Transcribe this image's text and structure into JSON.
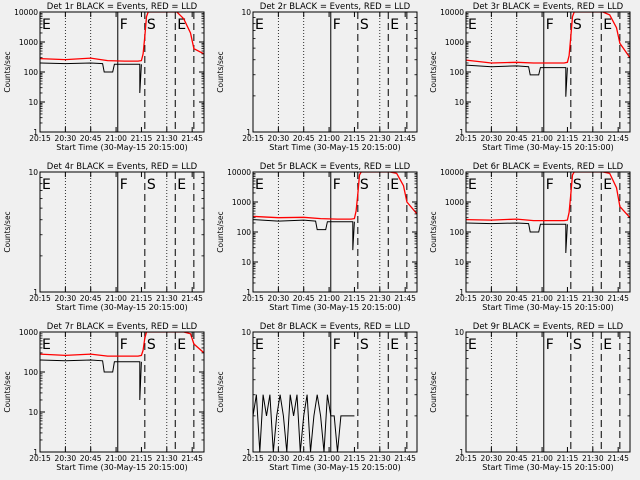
{
  "chart_data": [
    {
      "type": "line",
      "title": "Det 1r BLACK = Events, RED = LLD",
      "xlabel": "Start Time (30-May-15 20:15:00)",
      "ylabel": "Counts/sec",
      "ylim": [
        1,
        10000
      ],
      "yscale": "log",
      "yticks": [
        "1",
        "10",
        "100",
        "1000",
        "10000"
      ],
      "xlim": [
        "20:15",
        "21:52"
      ],
      "xticks": [
        "20:15",
        "20:30",
        "20:45",
        "21:00",
        "21:15",
        "21:30",
        "21:45"
      ],
      "markers": [
        {
          "label": "E",
          "time": "20:15",
          "style": "solid"
        },
        {
          "label": "F",
          "time": "21:01",
          "style": "solid"
        },
        {
          "label": "S",
          "time": "21:17",
          "style": "dashed"
        },
        {
          "label": "E",
          "time": "21:35",
          "style": "dashed"
        },
        {
          "label": "",
          "time": "21:46",
          "style": "dashed"
        }
      ],
      "series": [
        {
          "color": "#000000",
          "x": [
            "20:15",
            "20:30",
            "20:45",
            "20:52",
            "20:53",
            "20:58",
            "20:59",
            "21:05",
            "21:10",
            "21:14",
            "21:14",
            "21:15"
          ],
          "y": [
            200,
            190,
            200,
            190,
            100,
            100,
            180,
            180,
            180,
            180,
            20,
            180
          ]
        },
        {
          "color": "#ff0000",
          "x": [
            "20:15",
            "20:30",
            "20:45",
            "20:55",
            "21:05",
            "21:13",
            "21:15",
            "21:16",
            "21:17",
            "21:18",
            "21:19",
            "21:20",
            "21:32",
            "21:36",
            "21:40",
            "21:44",
            "21:46",
            "21:52"
          ],
          "y": [
            280,
            260,
            290,
            240,
            230,
            230,
            240,
            400,
            1500,
            7000,
            12000,
            12000,
            12000,
            12000,
            6000,
            2000,
            600,
            400
          ]
        }
      ]
    },
    {
      "type": "line",
      "title": "Det 2r BLACK = Events, RED = LLD",
      "xlabel": "Start Time (30-May-15 20:15:00)",
      "ylabel": "Counts/sec",
      "ylim": [
        1,
        10
      ],
      "yscale": "log",
      "yticks": [
        "1",
        "10"
      ],
      "xlim": [
        "20:15",
        "21:52"
      ],
      "xticks": [
        "20:15",
        "20:30",
        "20:45",
        "21:00",
        "21:15",
        "21:30",
        "21:45"
      ],
      "markers": [
        {
          "label": "E",
          "time": "20:15",
          "style": "solid"
        },
        {
          "label": "F",
          "time": "21:01",
          "style": "solid"
        },
        {
          "label": "S",
          "time": "21:17",
          "style": "dashed"
        },
        {
          "label": "E",
          "time": "21:35",
          "style": "dashed"
        },
        {
          "label": "",
          "time": "21:46",
          "style": "dashed"
        }
      ],
      "series": []
    },
    {
      "type": "line",
      "title": "Det 3r BLACK = Events, RED = LLD",
      "xlabel": "Start Time (30-May-15 20:15:00)",
      "ylabel": "Counts/sec",
      "ylim": [
        1,
        10000
      ],
      "yscale": "log",
      "yticks": [
        "1",
        "10",
        "100",
        "1000",
        "10000"
      ],
      "xlim": [
        "20:15",
        "21:52"
      ],
      "xticks": [
        "20:15",
        "20:30",
        "20:45",
        "21:00",
        "21:15",
        "21:30",
        "21:45"
      ],
      "markers": [
        {
          "label": "E",
          "time": "20:15",
          "style": "solid"
        },
        {
          "label": "F",
          "time": "21:01",
          "style": "solid"
        },
        {
          "label": "S",
          "time": "21:17",
          "style": "dashed"
        },
        {
          "label": "E",
          "time": "21:35",
          "style": "dashed"
        },
        {
          "label": "",
          "time": "21:46",
          "style": "dashed"
        }
      ],
      "series": [
        {
          "color": "#000000",
          "x": [
            "20:15",
            "20:30",
            "20:45",
            "20:52",
            "20:53",
            "20:58",
            "20:59",
            "21:05",
            "21:10",
            "21:14",
            "21:14",
            "21:15"
          ],
          "y": [
            170,
            150,
            160,
            150,
            80,
            80,
            140,
            140,
            140,
            140,
            15,
            140
          ]
        },
        {
          "color": "#ff0000",
          "x": [
            "20:15",
            "20:30",
            "20:45",
            "20:55",
            "21:05",
            "21:13",
            "21:15",
            "21:16",
            "21:17",
            "21:18",
            "21:19",
            "21:20",
            "21:32",
            "21:36",
            "21:40",
            "21:44",
            "21:46",
            "21:52"
          ],
          "y": [
            250,
            200,
            210,
            200,
            200,
            200,
            210,
            350,
            1500,
            7000,
            12000,
            12000,
            12000,
            12000,
            8000,
            3000,
            900,
            300
          ]
        }
      ]
    },
    {
      "type": "line",
      "title": "Det 4r BLACK = Events, RED = LLD",
      "xlabel": "Start Time (30-May-15 20:15:00)",
      "ylabel": "Counts/sec",
      "ylim": [
        1,
        10
      ],
      "yscale": "log",
      "yticks": [
        "1",
        "10"
      ],
      "xlim": [
        "20:15",
        "21:52"
      ],
      "xticks": [
        "20:15",
        "20:30",
        "20:45",
        "21:00",
        "21:15",
        "21:30",
        "21:45"
      ],
      "markers": [
        {
          "label": "E",
          "time": "20:15",
          "style": "solid"
        },
        {
          "label": "F",
          "time": "21:01",
          "style": "solid"
        },
        {
          "label": "S",
          "time": "21:17",
          "style": "dashed"
        },
        {
          "label": "E",
          "time": "21:35",
          "style": "dashed"
        },
        {
          "label": "",
          "time": "21:46",
          "style": "dashed"
        }
      ],
      "series": []
    },
    {
      "type": "line",
      "title": "Det 5r BLACK = Events, RED = LLD",
      "xlabel": "Start Time (30-May-15 20:15:00)",
      "ylabel": "Counts/sec",
      "ylim": [
        1,
        10000
      ],
      "yscale": "log",
      "yticks": [
        "1",
        "10",
        "100",
        "1000",
        "10000"
      ],
      "xlim": [
        "20:15",
        "21:52"
      ],
      "xticks": [
        "20:15",
        "20:30",
        "20:45",
        "21:00",
        "21:15",
        "21:30",
        "21:45"
      ],
      "markers": [
        {
          "label": "E",
          "time": "20:15",
          "style": "solid"
        },
        {
          "label": "F",
          "time": "21:01",
          "style": "solid"
        },
        {
          "label": "S",
          "time": "21:17",
          "style": "dashed"
        },
        {
          "label": "E",
          "time": "21:35",
          "style": "dashed"
        },
        {
          "label": "",
          "time": "21:46",
          "style": "dashed"
        }
      ],
      "series": [
        {
          "color": "#000000",
          "x": [
            "20:15",
            "20:30",
            "20:45",
            "20:52",
            "20:53",
            "20:58",
            "20:59",
            "21:05",
            "21:10",
            "21:14",
            "21:14",
            "21:15"
          ],
          "y": [
            260,
            230,
            250,
            230,
            120,
            120,
            220,
            220,
            220,
            220,
            25,
            220
          ]
        },
        {
          "color": "#ff0000",
          "x": [
            "20:15",
            "20:30",
            "20:45",
            "20:55",
            "21:05",
            "21:13",
            "21:15",
            "21:16",
            "21:17",
            "21:18",
            "21:19",
            "21:20",
            "21:32",
            "21:36",
            "21:40",
            "21:44",
            "21:46",
            "21:52"
          ],
          "y": [
            330,
            300,
            310,
            280,
            270,
            270,
            280,
            500,
            1800,
            8000,
            12000,
            12000,
            12000,
            12000,
            9000,
            3500,
            1000,
            400
          ]
        }
      ]
    },
    {
      "type": "line",
      "title": "Det 6r BLACK = Events, RED = LLD",
      "xlabel": "Start Time (30-May-15 20:15:00)",
      "ylabel": "Counts/sec",
      "ylim": [
        1,
        10000
      ],
      "yscale": "log",
      "yticks": [
        "1",
        "10",
        "100",
        "1000",
        "10000"
      ],
      "xlim": [
        "20:15",
        "21:52"
      ],
      "xticks": [
        "20:15",
        "20:30",
        "20:45",
        "21:00",
        "21:15",
        "21:30",
        "21:45"
      ],
      "markers": [
        {
          "label": "E",
          "time": "20:15",
          "style": "solid"
        },
        {
          "label": "F",
          "time": "21:01",
          "style": "solid"
        },
        {
          "label": "S",
          "time": "21:17",
          "style": "dashed"
        },
        {
          "label": "E",
          "time": "21:35",
          "style": "dashed"
        },
        {
          "label": "",
          "time": "21:46",
          "style": "dashed"
        }
      ],
      "series": [
        {
          "color": "#000000",
          "x": [
            "20:15",
            "20:30",
            "20:45",
            "20:52",
            "20:53",
            "20:58",
            "20:59",
            "21:05",
            "21:10",
            "21:14",
            "21:14",
            "21:15"
          ],
          "y": [
            200,
            190,
            200,
            190,
            100,
            100,
            180,
            180,
            180,
            180,
            20,
            180
          ]
        },
        {
          "color": "#ff0000",
          "x": [
            "20:15",
            "20:30",
            "20:45",
            "20:55",
            "21:05",
            "21:13",
            "21:15",
            "21:16",
            "21:17",
            "21:18",
            "21:19",
            "21:20",
            "21:32",
            "21:36",
            "21:40",
            "21:44",
            "21:46",
            "21:52"
          ],
          "y": [
            260,
            250,
            270,
            240,
            240,
            240,
            250,
            450,
            1800,
            8000,
            12000,
            12000,
            12000,
            12000,
            9000,
            3000,
            700,
            300
          ]
        }
      ]
    },
    {
      "type": "line",
      "title": "Det 7r BLACK = Events, RED = LLD",
      "xlabel": "Start Time (30-May-15 20:15:00)",
      "ylabel": "Counts/sec",
      "ylim": [
        1,
        1000
      ],
      "yscale": "log",
      "yticks": [
        "1",
        "10",
        "100",
        "1000"
      ],
      "xlim": [
        "20:15",
        "21:52"
      ],
      "xticks": [
        "20:15",
        "20:30",
        "20:45",
        "21:00",
        "21:15",
        "21:30",
        "21:45"
      ],
      "markers": [
        {
          "label": "E",
          "time": "20:15",
          "style": "solid"
        },
        {
          "label": "F",
          "time": "21:01",
          "style": "solid"
        },
        {
          "label": "S",
          "time": "21:17",
          "style": "dashed"
        },
        {
          "label": "E",
          "time": "21:35",
          "style": "dashed"
        },
        {
          "label": "",
          "time": "21:46",
          "style": "dashed"
        }
      ],
      "series": [
        {
          "color": "#000000",
          "x": [
            "20:15",
            "20:30",
            "20:45",
            "20:52",
            "20:53",
            "20:58",
            "20:59",
            "21:05",
            "21:10",
            "21:14",
            "21:14",
            "21:15"
          ],
          "y": [
            200,
            190,
            200,
            190,
            100,
            100,
            180,
            180,
            180,
            180,
            20,
            180
          ]
        },
        {
          "color": "#ff0000",
          "x": [
            "20:15",
            "20:30",
            "20:45",
            "20:55",
            "21:05",
            "21:13",
            "21:15",
            "21:16",
            "21:17",
            "21:18",
            "21:20",
            "21:32",
            "21:40",
            "21:44",
            "21:46",
            "21:52"
          ],
          "y": [
            280,
            260,
            280,
            250,
            250,
            250,
            260,
            350,
            700,
            1200,
            1200,
            1200,
            1200,
            900,
            500,
            300
          ]
        }
      ]
    },
    {
      "type": "line",
      "title": "Det 8r BLACK = Events, RED = LLD",
      "xlabel": "Start Time (30-May-15 20:15:00)",
      "ylabel": "Counts/sec",
      "ylim": [
        1,
        10
      ],
      "yscale": "log",
      "yticks": [
        "1",
        "10"
      ],
      "xlim": [
        "20:15",
        "21:52"
      ],
      "xticks": [
        "20:15",
        "20:30",
        "20:45",
        "21:00",
        "21:15",
        "21:30",
        "21:45"
      ],
      "markers": [
        {
          "label": "E",
          "time": "20:15",
          "style": "solid"
        },
        {
          "label": "F",
          "time": "21:01",
          "style": "solid"
        },
        {
          "label": "S",
          "time": "21:17",
          "style": "dashed"
        },
        {
          "label": "E",
          "time": "21:35",
          "style": "dashed"
        },
        {
          "label": "",
          "time": "21:46",
          "style": "dashed"
        }
      ],
      "series": [
        {
          "color": "#000000",
          "x": [
            "20:15",
            "20:17",
            "20:19",
            "20:21",
            "20:23",
            "20:25",
            "20:27",
            "20:29",
            "20:31",
            "20:33",
            "20:35",
            "20:37",
            "20:39",
            "20:41",
            "20:43",
            "20:45",
            "20:47",
            "20:49",
            "20:51",
            "20:53",
            "20:55",
            "20:57",
            "20:59",
            "21:01",
            "21:03",
            "21:05",
            "21:07",
            "21:09",
            "21:11",
            "21:13",
            "21:15"
          ],
          "y": [
            2,
            3,
            1,
            3,
            2,
            3,
            1,
            2,
            3,
            2,
            1,
            3,
            2,
            3,
            1,
            2,
            3,
            1,
            2,
            3,
            2,
            1,
            3,
            2,
            2,
            1,
            2,
            2,
            2,
            2,
            2
          ]
        }
      ]
    },
    {
      "type": "line",
      "title": "Det 9r BLACK = Events, RED = LLD",
      "xlabel": "Start Time (30-May-15 20:15:00)",
      "ylabel": "Counts/sec",
      "ylim": [
        1,
        10
      ],
      "yscale": "log",
      "yticks": [
        "1",
        "10"
      ],
      "xlim": [
        "20:15",
        "21:52"
      ],
      "xticks": [
        "20:15",
        "20:30",
        "20:45",
        "21:00",
        "21:15",
        "21:30",
        "21:45"
      ],
      "markers": [
        {
          "label": "E",
          "time": "20:15",
          "style": "solid"
        },
        {
          "label": "F",
          "time": "21:01",
          "style": "solid"
        },
        {
          "label": "S",
          "time": "21:17",
          "style": "dashed"
        },
        {
          "label": "E",
          "time": "21:35",
          "style": "dashed"
        },
        {
          "label": "",
          "time": "21:46",
          "style": "dashed"
        }
      ],
      "series": []
    }
  ]
}
